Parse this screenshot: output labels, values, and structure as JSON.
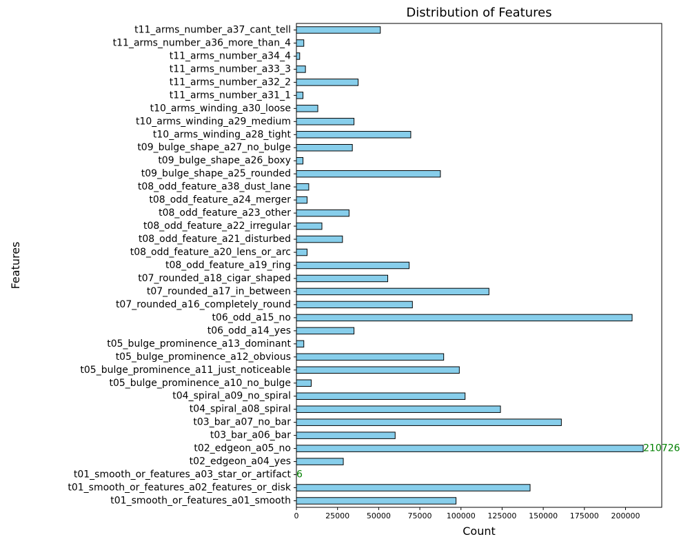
{
  "chart_data": {
    "type": "bar",
    "orientation": "horizontal",
    "title": "Distribution of Features",
    "xlabel": "Count",
    "ylabel": "Features",
    "xlim": [
      0,
      222000
    ],
    "xticks": [
      0,
      25000,
      50000,
      75000,
      100000,
      125000,
      150000,
      175000,
      200000
    ],
    "bar_color": "#87ceeb",
    "bar_edge_color": "#000000",
    "annotation_color": "#008000",
    "grid": false,
    "categories": [
      "t01_smooth_or_features_a01_smooth",
      "t01_smooth_or_features_a02_features_or_disk",
      "t01_smooth_or_features_a03_star_or_artifact",
      "t02_edgeon_a04_yes",
      "t02_edgeon_a05_no",
      "t03_bar_a06_bar",
      "t03_bar_a07_no_bar",
      "t04_spiral_a08_spiral",
      "t04_spiral_a09_no_spiral",
      "t05_bulge_prominence_a10_no_bulge",
      "t05_bulge_prominence_a11_just_noticeable",
      "t05_bulge_prominence_a12_obvious",
      "t05_bulge_prominence_a13_dominant",
      "t06_odd_a14_yes",
      "t06_odd_a15_no",
      "t07_rounded_a16_completely_round",
      "t07_rounded_a17_in_between",
      "t07_rounded_a18_cigar_shaped",
      "t08_odd_feature_a19_ring",
      "t08_odd_feature_a20_lens_or_arc",
      "t08_odd_feature_a21_disturbed",
      "t08_odd_feature_a22_irregular",
      "t08_odd_feature_a23_other",
      "t08_odd_feature_a24_merger",
      "t08_odd_feature_a38_dust_lane",
      "t09_bulge_shape_a25_rounded",
      "t09_bulge_shape_a26_boxy",
      "t09_bulge_shape_a27_no_bulge",
      "t10_arms_winding_a28_tight",
      "t10_arms_winding_a29_medium",
      "t10_arms_winding_a30_loose",
      "t11_arms_number_a31_1",
      "t11_arms_number_a32_2",
      "t11_arms_number_a33_3",
      "t11_arms_number_a34_4",
      "t11_arms_number_a36_more_than_4",
      "t11_arms_number_a37_cant_tell"
    ],
    "values": [
      97000,
      142000,
      6,
      28500,
      210726,
      60000,
      161000,
      124000,
      102500,
      9000,
      99000,
      89500,
      4500,
      35000,
      204000,
      70500,
      117000,
      55500,
      68500,
      6500,
      28000,
      15500,
      32000,
      6500,
      7500,
      87500,
      4000,
      34000,
      69500,
      35000,
      13000,
      4000,
      37500,
      5500,
      2000,
      4500,
      51000
    ],
    "annotations": [
      {
        "category": "t02_edgeon_a05_no",
        "text": "210726"
      },
      {
        "category": "t01_smooth_or_features_a03_star_or_artifact",
        "text": "6"
      }
    ]
  }
}
